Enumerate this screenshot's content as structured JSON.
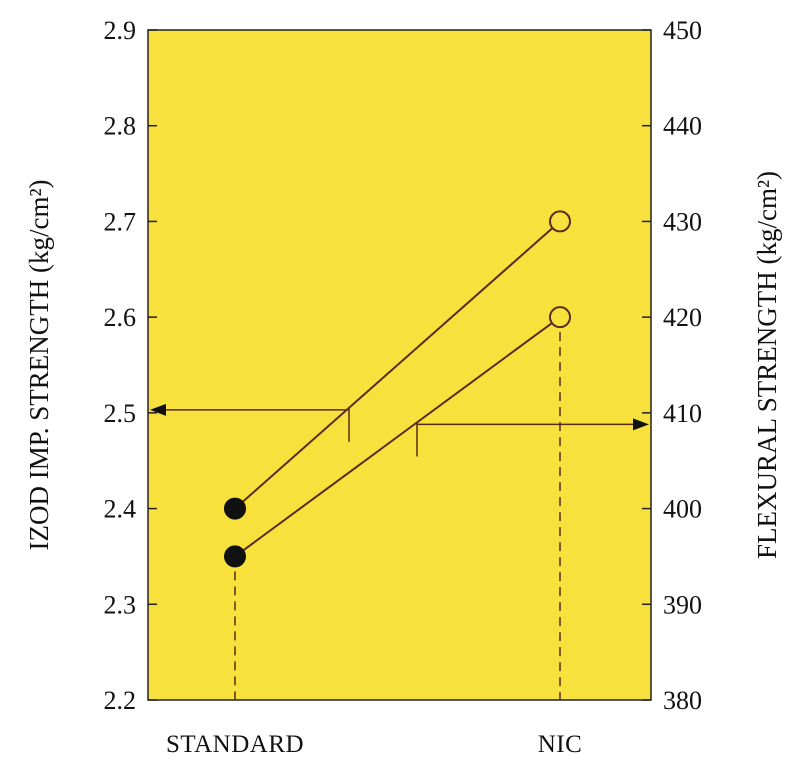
{
  "chart_data": {
    "type": "line",
    "categories": [
      "STANDARD",
      "NIC"
    ],
    "left_axis": {
      "label": "IZOD IMP. STRENGTH (kg/cm²)",
      "ylim": [
        2.2,
        2.9
      ],
      "ticks": [
        "2.2",
        "2.3",
        "2.4",
        "2.5",
        "2.6",
        "2.7",
        "2.8",
        "2.9"
      ]
    },
    "right_axis": {
      "label": "FLEXURAL STRENGTH (kg/cm²)",
      "ylim": [
        380,
        450
      ],
      "ticks": [
        "380",
        "390",
        "400",
        "410",
        "420",
        "430",
        "440",
        "450"
      ]
    },
    "series": [
      {
        "values": [
          2.4,
          2.7
        ],
        "axis": "left",
        "marker_standard": "filled",
        "marker_nic": "open"
      },
      {
        "values": [
          395,
          420
        ],
        "axis": "right",
        "marker_standard": "filled",
        "marker_nic": "open"
      }
    ],
    "background_color": "#f8e13c",
    "line_color": "#5a2a1a",
    "grid": false
  }
}
